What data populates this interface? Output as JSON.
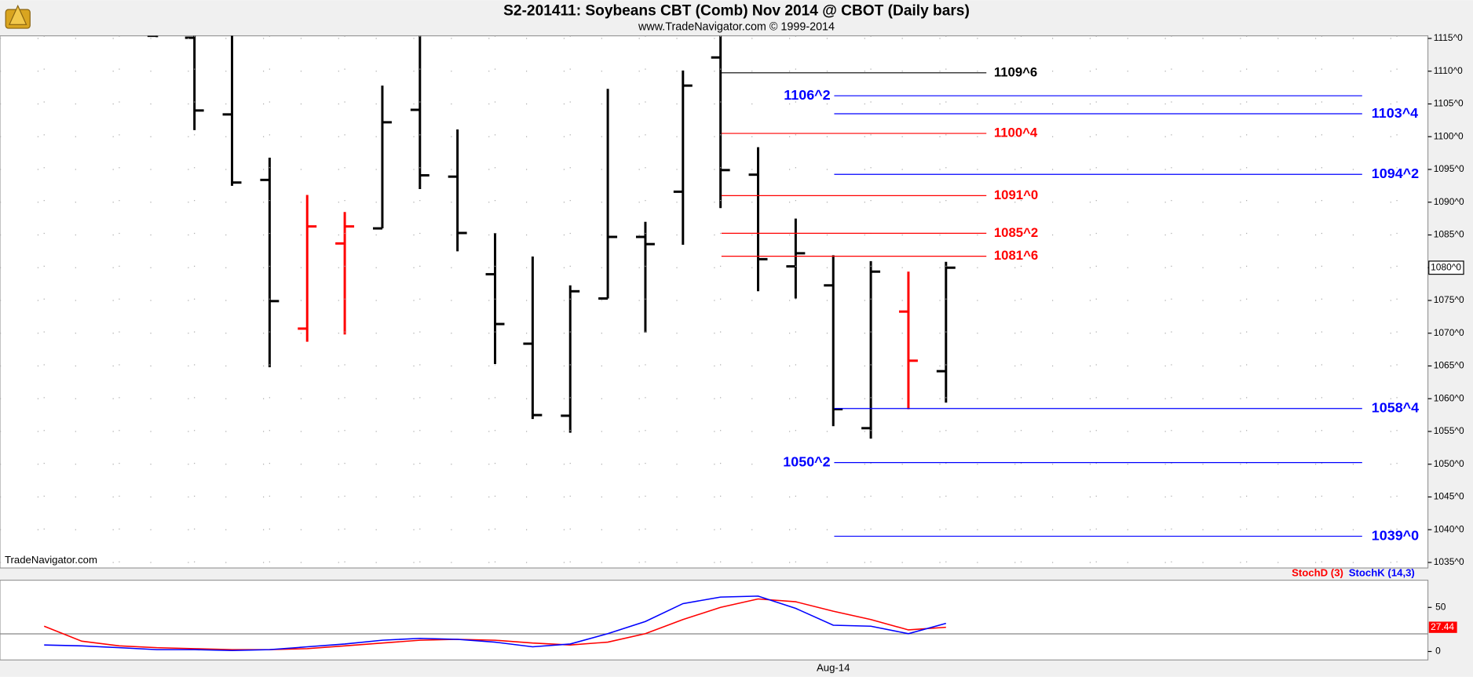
{
  "chart_data": [
    {
      "type": "ohlc",
      "title": "S2-201411:  Soybeans CBT (Comb) Nov 2014 @ CBOT  (Daily bars)",
      "subtitle": "www.TradeNavigator.com © 1999-2014",
      "annotation": "TradeNavigator.com",
      "open": [
        null,
        null,
        null,
        1115.4,
        1115.1,
        1103.4,
        1093.4,
        1070.7,
        1083.7,
        1086,
        1104.1,
        1093.9,
        1079,
        1068.4,
        1057.4,
        1075.3,
        1084.7,
        1091.6,
        1112.1,
        1094.2,
        1080.2,
        1077.3,
        1055.5,
        1073.3,
        1064.2
      ],
      "high": [
        null,
        null,
        null,
        1120,
        1120,
        1120,
        1096.8,
        1091.1,
        1088.5,
        1107.8,
        1115.4,
        1101.1,
        1085.3,
        1081.7,
        1077.3,
        1107.3,
        1087,
        1110.1,
        1115.4,
        1098.4,
        1087.5,
        1081.9,
        1081,
        1079.4,
        1080.9
      ],
      "low": [
        null,
        null,
        null,
        1115.2,
        1101,
        1092.5,
        1064.8,
        1068.7,
        1069.8,
        1086,
        1092,
        1082.5,
        1065.3,
        1056.9,
        1054.8,
        1075.3,
        1070.1,
        1083.5,
        1089.1,
        1076.4,
        1075.3,
        1055.8,
        1053.9,
        1058.4,
        1059.4
      ],
      "close": [
        null,
        null,
        null,
        1116,
        1104,
        1093,
        1074.9,
        1086.3,
        1086.3,
        1102.2,
        1094.1,
        1085.3,
        1071.4,
        1057.5,
        1076.4,
        1084.7,
        1083.6,
        1107.8,
        1094.9,
        1081.3,
        1082.2,
        1058.4,
        1079.4,
        1065.8,
        1080
      ],
      "colors": [
        null,
        null,
        null,
        "#000000",
        "#000000",
        "#000000",
        "#000000",
        "#ff0000",
        "#ff0000",
        "#000000",
        "#000000",
        "#000000",
        "#000000",
        "#000000",
        "#000000",
        "#000000",
        "#000000",
        "#000000",
        "#000000",
        "#000000",
        "#000000",
        "#000000",
        "#000000",
        "#ff0000",
        "#000000"
      ],
      "ylim": [
        1034.3,
        1115.4
      ],
      "yticks": [
        {
          "value": 1035,
          "label": "1035^0"
        },
        {
          "value": 1040,
          "label": "1040^0"
        },
        {
          "value": 1045,
          "label": "1045^0"
        },
        {
          "value": 1050,
          "label": "1050^0"
        },
        {
          "value": 1055,
          "label": "1055^0"
        },
        {
          "value": 1060,
          "label": "1060^0"
        },
        {
          "value": 1065,
          "label": "1065^0"
        },
        {
          "value": 1070,
          "label": "1070^0"
        },
        {
          "value": 1075,
          "label": "1075^0"
        },
        {
          "value": 1080,
          "label": "1080^0"
        },
        {
          "value": 1085,
          "label": "1085^0"
        },
        {
          "value": 1090,
          "label": "1090^0"
        },
        {
          "value": 1095,
          "label": "1095^0"
        },
        {
          "value": 1100,
          "label": "1100^0"
        },
        {
          "value": 1105,
          "label": "1105^0"
        },
        {
          "value": 1110,
          "label": "1110^0"
        },
        {
          "value": 1115,
          "label": "1115^0"
        }
      ],
      "last_price": {
        "value": 1080,
        "label": "1080^0"
      },
      "levels": [
        {
          "value": 1109.75,
          "label": "1109^6",
          "color": "#000000"
        },
        {
          "value": 1106.25,
          "label": "1106^2",
          "color": "#0000ff"
        },
        {
          "value": 1103.5,
          "label": "1103^4",
          "color": "#0000ff"
        },
        {
          "value": 1100.5,
          "label": "1100^4",
          "color": "#ff0000"
        },
        {
          "value": 1094.25,
          "label": "1094^2",
          "color": "#0000ff"
        },
        {
          "value": 1091,
          "label": "1091^0",
          "color": "#ff0000"
        },
        {
          "value": 1085.25,
          "label": "1085^2",
          "color": "#ff0000"
        },
        {
          "value": 1081.75,
          "label": "1081^6",
          "color": "#ff0000"
        },
        {
          "value": 1058.5,
          "label": "1058^4",
          "color": "#0000ff"
        },
        {
          "value": 1050.25,
          "label": "1050^2",
          "color": "#0000ff"
        },
        {
          "value": 1039,
          "label": "1039^0",
          "color": "#0000ff"
        }
      ],
      "grid": true
    },
    {
      "type": "line",
      "categories": [
        null,
        null,
        null,
        null,
        null,
        null,
        null,
        null,
        null,
        null,
        null,
        null,
        null,
        null,
        null,
        null,
        null,
        null,
        null,
        null,
        null,
        "Aug-14",
        null,
        null,
        null
      ],
      "series": [
        {
          "name": "StochD (3)",
          "color": "#ff0000",
          "values": [
            28.7,
            11.7,
            6.4,
            4.3,
            3.2,
            2.1,
            2.1,
            3.2,
            6.4,
            9.6,
            12.8,
            13.8,
            12.8,
            9.6,
            7.4,
            10.6,
            20.2,
            36.2,
            50,
            59.6,
            56.4,
            45.7,
            36.2,
            24.5,
            27.44
          ],
          "last_label": "27.44"
        },
        {
          "name": "StochK (14,3)",
          "color": "#0000ff",
          "values": [
            7.4,
            6.4,
            4.3,
            2.1,
            2.1,
            1.1,
            2.1,
            5.3,
            8.5,
            12.8,
            14.9,
            13.8,
            10.6,
            5.3,
            8.5,
            20.2,
            34,
            54.3,
            61.7,
            62.8,
            48.9,
            29.8,
            28.7,
            20.2,
            31.9
          ]
        }
      ],
      "reference_line": 20,
      "ylim": [
        -9.6,
        79.8
      ],
      "yticks": [
        0,
        50
      ]
    }
  ]
}
